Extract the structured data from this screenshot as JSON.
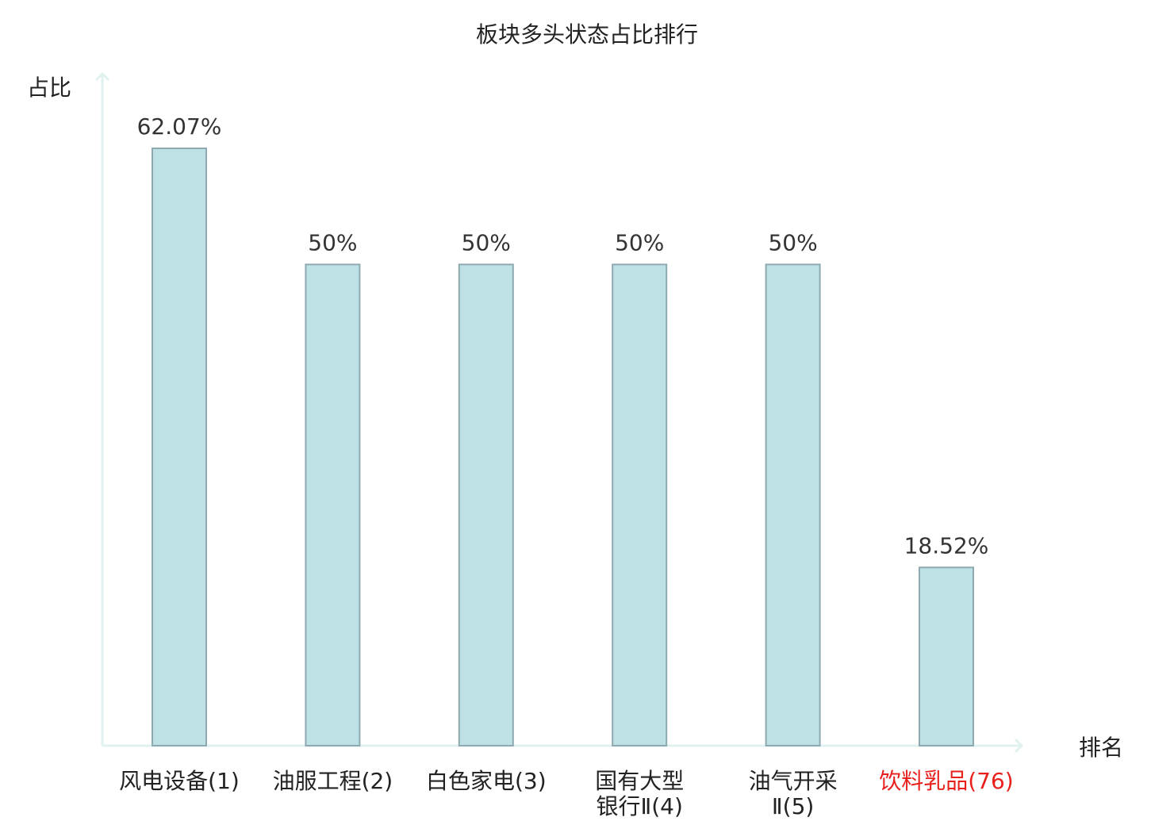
{
  "chart_data": {
    "type": "bar",
    "title": "板块多头状态占比排行",
    "ylabel": "占比",
    "xlabel": "排名",
    "ylim": [
      0,
      70
    ],
    "grid": false,
    "categories": [
      "风电设备(1)",
      "油服工程(2)",
      "白色家电(3)",
      "国有大型银行Ⅱ(4)",
      "油气开采Ⅱ(5)",
      "饮料乳品(76)"
    ],
    "category_lines": [
      [
        "风电设备(1)"
      ],
      [
        "油服工程(2)"
      ],
      [
        "白色家电(3)"
      ],
      [
        "国有大型",
        "银行Ⅱ(4)"
      ],
      [
        "油气开采",
        "Ⅱ(5)"
      ],
      [
        "饮料乳品(76)"
      ]
    ],
    "values": [
      62.07,
      50,
      50,
      50,
      50,
      18.52
    ],
    "value_labels": [
      "62.07%",
      "50%",
      "50%",
      "50%",
      "50%",
      "18.52%"
    ],
    "highlight_index": 5,
    "colors": {
      "bar_fill": "#bde1e4",
      "bar_stroke": "#8eaab0",
      "axis": "#e0f2ef",
      "text": "#222222",
      "highlight_text": "#e8201c"
    }
  }
}
